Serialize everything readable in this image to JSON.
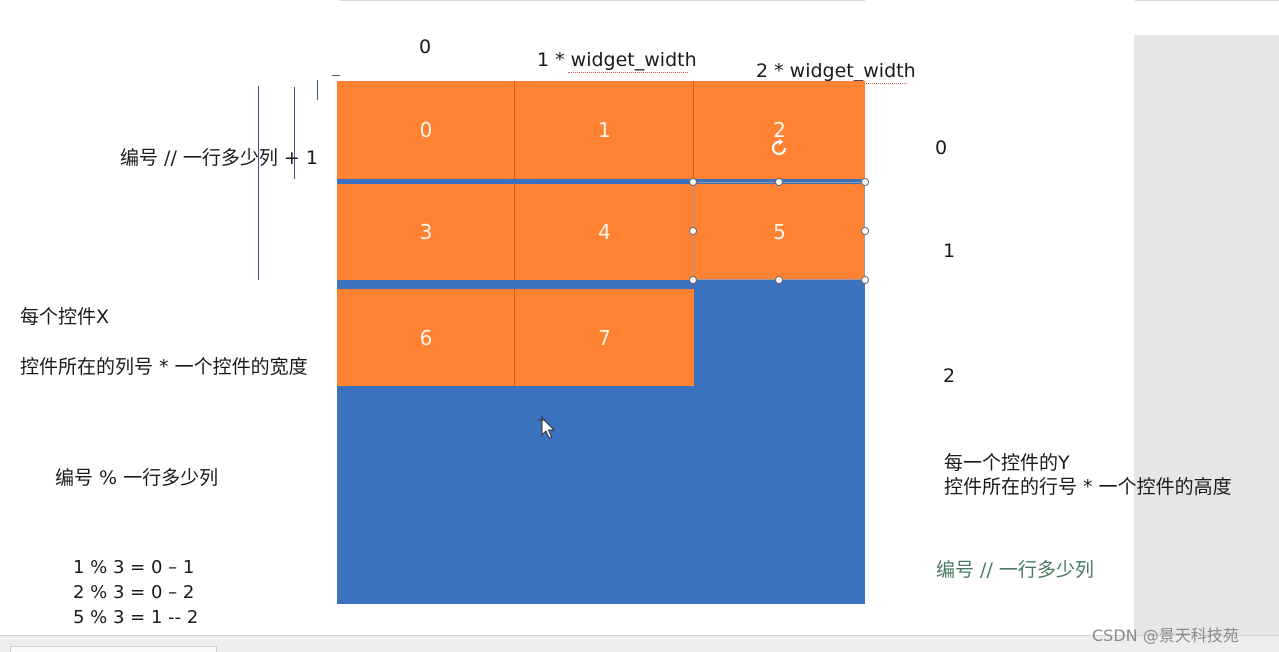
{
  "top_labels": {
    "zero": "0",
    "one_width": "1 * widget_width",
    "two_width": "2 * widget_width"
  },
  "cells": [
    "0",
    "1",
    "2",
    "3",
    "4",
    "5",
    "6",
    "7"
  ],
  "right_row_labels": [
    "0",
    "1",
    "2"
  ],
  "left_notes": {
    "col_formula": "编号 // 一行多少列 + 1",
    "x_title": "每个控件X",
    "x_desc": "控件所在的列号 * 一个控件的宽度",
    "mod_formula": "编号 % 一行多少列",
    "examples": [
      "1 % 3 = 0 – 1",
      "2 % 3 = 0 – 2",
      "5 % 3 = 1 -- 2"
    ]
  },
  "right_notes": {
    "y_title": "每一个控件的Y",
    "y_desc": "控件所在的行号 * 一个控件的高度",
    "row_formula": "编号  //  一行多少列"
  },
  "watermark": "CSDN @景天科技苑",
  "colors": {
    "orange": "#fe8232",
    "blue": "#3a72c0",
    "gray_panel": "#e6e6e6"
  }
}
